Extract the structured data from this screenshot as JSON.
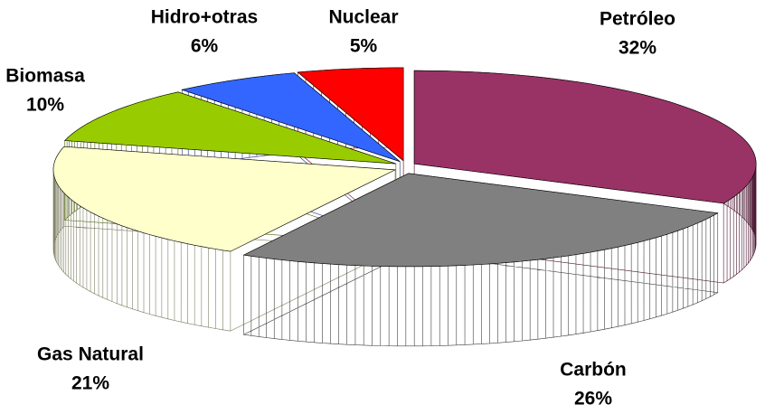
{
  "chart_data": {
    "type": "pie3d",
    "categories": [
      "Petróleo",
      "Carbón",
      "Gas Natural",
      "Biomasa",
      "Hidro+otras",
      "Nuclear"
    ],
    "values": [
      32,
      26,
      21,
      10,
      6,
      5
    ],
    "value_labels": [
      "32%",
      "26%",
      "21%",
      "10%",
      "6%",
      "5%"
    ],
    "colors": [
      "#993366",
      "#808080",
      "#ffffcc",
      "#99cc00",
      "#3366ff",
      "#ff0000"
    ]
  }
}
